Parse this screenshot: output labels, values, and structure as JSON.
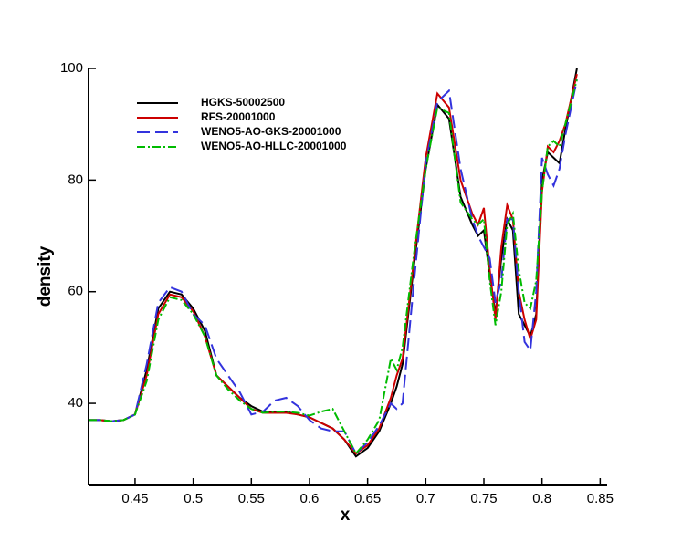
{
  "chart_data": {
    "type": "line",
    "xlabel": "x",
    "ylabel": "density",
    "x": [
      0.41,
      0.42,
      0.43,
      0.44,
      0.45,
      0.46,
      0.47,
      0.48,
      0.49,
      0.5,
      0.51,
      0.52,
      0.53,
      0.54,
      0.55,
      0.56,
      0.57,
      0.58,
      0.59,
      0.6,
      0.61,
      0.62,
      0.63,
      0.64,
      0.65,
      0.66,
      0.67,
      0.675,
      0.68,
      0.69,
      0.7,
      0.71,
      0.72,
      0.73,
      0.74,
      0.745,
      0.75,
      0.755,
      0.76,
      0.765,
      0.77,
      0.775,
      0.78,
      0.785,
      0.79,
      0.795,
      0.8,
      0.805,
      0.81,
      0.815,
      0.82,
      0.83
    ],
    "series": [
      {
        "name": "HGKS-50002500",
        "color": "#000000",
        "style": "solid",
        "values": [
          37,
          37,
          36.8,
          37,
          38,
          46,
          57,
          60,
          59.5,
          57,
          53,
          45,
          43,
          41,
          39.5,
          38.5,
          38.5,
          38.5,
          38,
          37.5,
          36.5,
          35.5,
          33.5,
          30.5,
          32,
          35,
          40,
          43,
          47,
          65,
          82,
          93.5,
          91,
          77,
          72,
          70,
          71,
          63,
          56,
          66,
          73,
          71,
          56,
          54,
          52,
          56,
          80,
          85,
          84,
          83,
          89,
          100
        ]
      },
      {
        "name": "RFS-20001000",
        "color": "#cc0000",
        "style": "solid",
        "values": [
          37,
          37,
          36.8,
          37,
          38,
          45,
          56,
          59.5,
          59,
          56.5,
          52,
          45,
          43,
          41,
          39,
          38.3,
          38.3,
          38.3,
          38,
          37.5,
          36.5,
          35.5,
          33.5,
          31,
          32.5,
          35.5,
          41,
          45,
          48,
          66,
          84,
          95.5,
          93,
          80,
          74,
          72,
          75,
          64,
          55,
          68,
          75.5,
          73,
          60,
          55,
          51.5,
          55,
          78,
          86,
          85,
          87,
          90,
          99
        ]
      },
      {
        "name": "WENO5-AO-GKS-20001000",
        "color": "#3333dd",
        "style": "dashed",
        "values": [
          37,
          37,
          36.8,
          37,
          38,
          47,
          58,
          60.8,
          60,
          56,
          54,
          48,
          45,
          42,
          38,
          38.5,
          40.5,
          41,
          39.5,
          37,
          35.5,
          35,
          35,
          31,
          33,
          36,
          40,
          39,
          40,
          62,
          83,
          94,
          96,
          82,
          73,
          70,
          68,
          66,
          58,
          62,
          73,
          73,
          60,
          51,
          49.5,
          60,
          84,
          81,
          79,
          82,
          88,
          98
        ]
      },
      {
        "name": "WENO5-AO-HLLC-20001000",
        "color": "#00bb00",
        "style": "dashdot",
        "values": [
          37,
          37,
          36.8,
          37,
          38,
          44,
          55,
          59,
          58.5,
          56,
          52,
          45,
          42.5,
          40.5,
          39,
          38.3,
          38.5,
          38.5,
          38.3,
          37.8,
          38.5,
          39,
          35,
          31,
          33.5,
          37,
          48,
          46,
          50,
          67,
          82,
          93,
          92,
          76,
          73,
          72,
          73,
          62,
          54,
          60,
          72,
          74,
          64,
          58,
          57,
          62,
          78,
          86,
          87,
          86,
          90,
          98
        ]
      }
    ],
    "xlim": [
      0.41,
      0.856
    ],
    "ylim": [
      25.3,
      100
    ],
    "xticks": [
      0.45,
      0.5,
      0.55,
      0.6,
      0.65,
      0.7,
      0.75,
      0.8,
      0.85
    ],
    "yticks": [
      40,
      60,
      80,
      100
    ]
  }
}
